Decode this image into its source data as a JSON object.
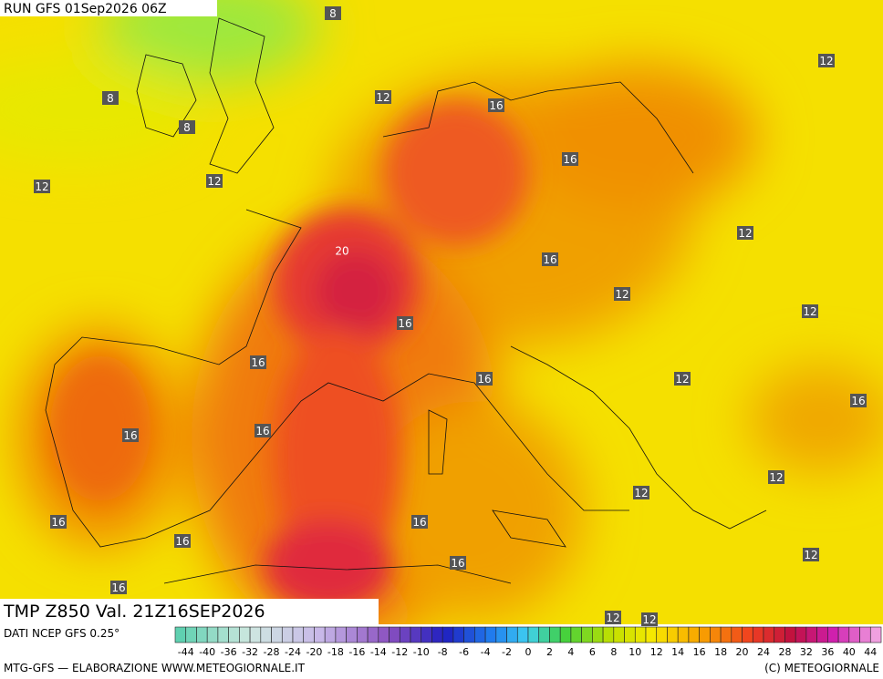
{
  "header": {
    "run": "RUN GFS 01Sep2026 06Z"
  },
  "map": {
    "labels": [
      8,
      8,
      8,
      12,
      16,
      12,
      12,
      12,
      16,
      20,
      12,
      16,
      12,
      12,
      16,
      16,
      16,
      12,
      16,
      16,
      16,
      12,
      12,
      16,
      16,
      16,
      12,
      16,
      16,
      12,
      12
    ]
  },
  "footer": {
    "title": "TMP Z850 Val. 21Z16SEP2026",
    "source": "DATI NCEP GFS 0.25°",
    "credit_left": "MTG-GFS — ELABORAZIONE WWW.METEOGIORNALE.IT",
    "credit_right": "(C) METEOGIORNALE"
  },
  "colorbar": {
    "ticks": [
      -44,
      -40,
      -36,
      -32,
      -28,
      -24,
      -20,
      -18,
      -16,
      -14,
      -12,
      -10,
      -8,
      -6,
      -4,
      -2,
      0,
      2,
      4,
      6,
      8,
      10,
      12,
      14,
      16,
      18,
      20,
      24,
      28,
      32,
      36,
      40,
      44
    ]
  }
}
